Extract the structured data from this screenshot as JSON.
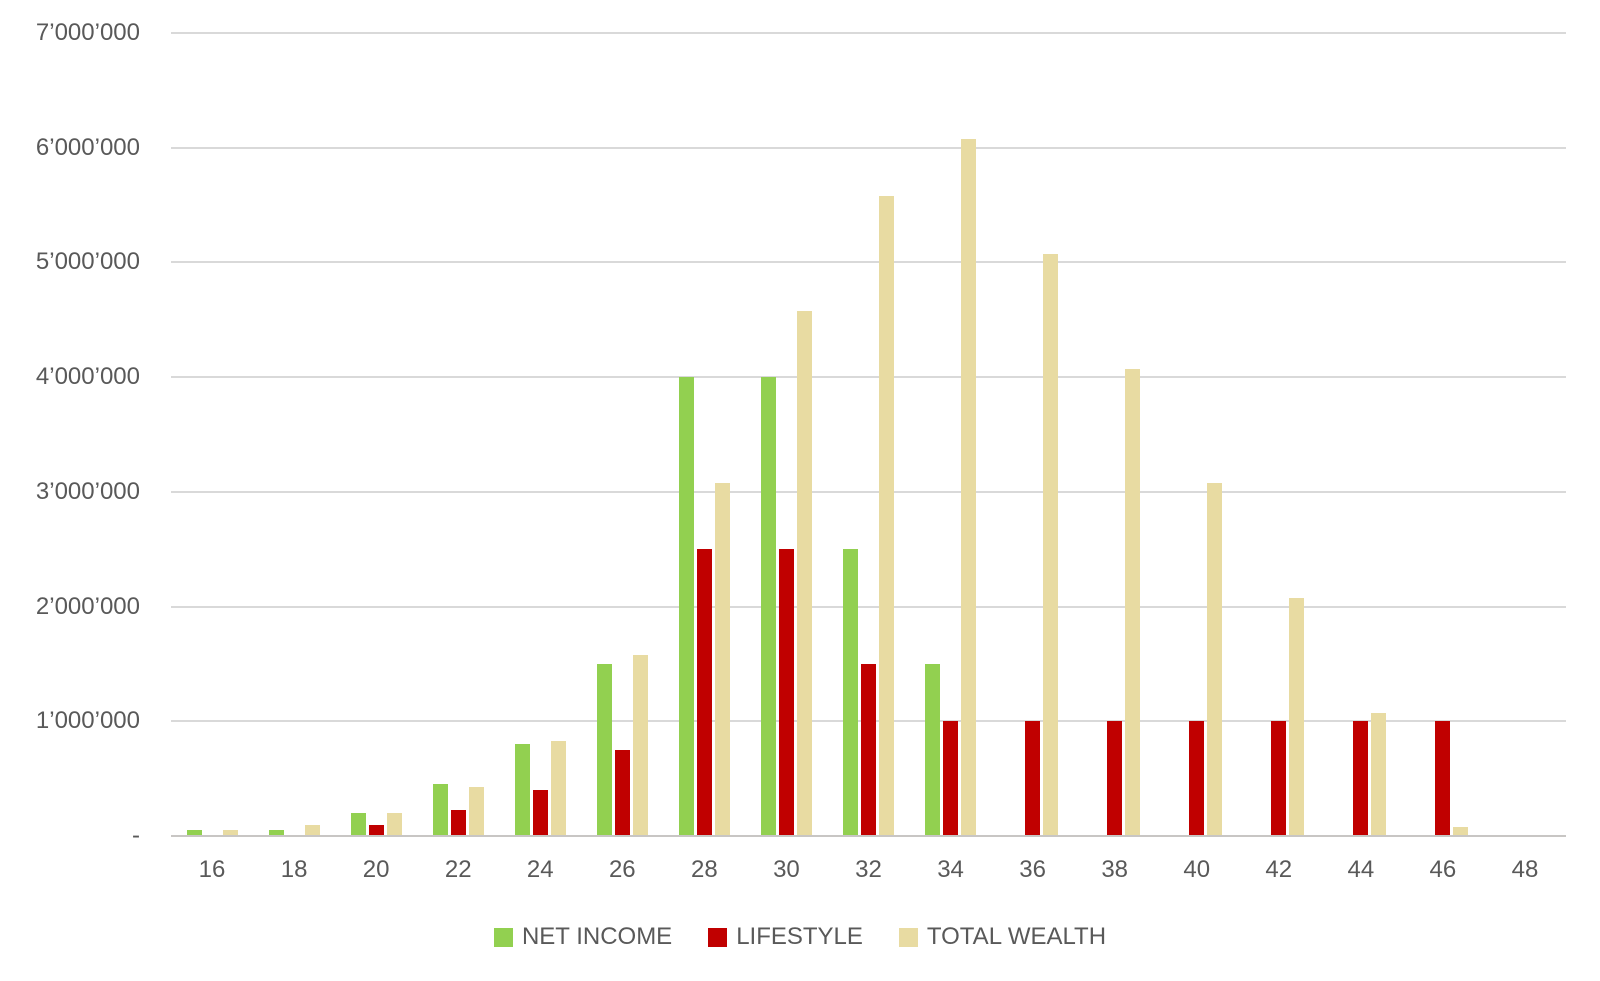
{
  "chart_data": {
    "type": "bar",
    "title": "",
    "xlabel": "",
    "ylabel": "",
    "categories": [
      "16",
      "18",
      "20",
      "22",
      "24",
      "26",
      "28",
      "30",
      "32",
      "34",
      "36",
      "38",
      "40",
      "42",
      "44",
      "46",
      "48"
    ],
    "series": [
      {
        "name": "NET INCOME",
        "color": "#92D050",
        "values": [
          50000,
          50000,
          200000,
          450000,
          800000,
          1500000,
          4000000,
          4000000,
          2500000,
          1500000,
          0,
          0,
          0,
          0,
          0,
          0,
          0
        ]
      },
      {
        "name": "LIFESTYLE",
        "color": "#C00000",
        "values": [
          0,
          0,
          100000,
          225000,
          400000,
          750000,
          2500000,
          2500000,
          1500000,
          1000000,
          1000000,
          1000000,
          1000000,
          1000000,
          1000000,
          1000000,
          0
        ]
      },
      {
        "name": "TOTAL WEALTH",
        "color": "#E8DBA2",
        "values": [
          50000,
          100000,
          200000,
          425000,
          825000,
          1575000,
          3075000,
          4575000,
          5575000,
          6075000,
          5075000,
          4075000,
          3075000,
          2075000,
          1075000,
          75000,
          0
        ]
      }
    ],
    "ylim": [
      0,
      7000000
    ],
    "yticks": [
      {
        "value": 7000000,
        "label": "7’000’000"
      },
      {
        "value": 6000000,
        "label": "6’000’000"
      },
      {
        "value": 5000000,
        "label": "5’000’000"
      },
      {
        "value": 4000000,
        "label": "4’000’000"
      },
      {
        "value": 3000000,
        "label": "3’000’000"
      },
      {
        "value": 2000000,
        "label": "2’000’000"
      },
      {
        "value": 1000000,
        "label": "1’000’000"
      },
      {
        "value": 0,
        "label": "-"
      }
    ],
    "grid": true,
    "legend_position": "bottom"
  },
  "colors": {
    "background": "#FFFFFF",
    "gridline": "#D9D9D9",
    "axis_line": "#C8C6C4",
    "tick_text": "#595959"
  }
}
